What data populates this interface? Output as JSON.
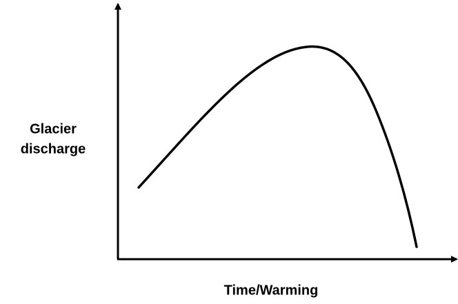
{
  "axes": {
    "y_label": [
      "Glacier",
      "discharge"
    ],
    "x_label": "Time/Warming"
  }
}
